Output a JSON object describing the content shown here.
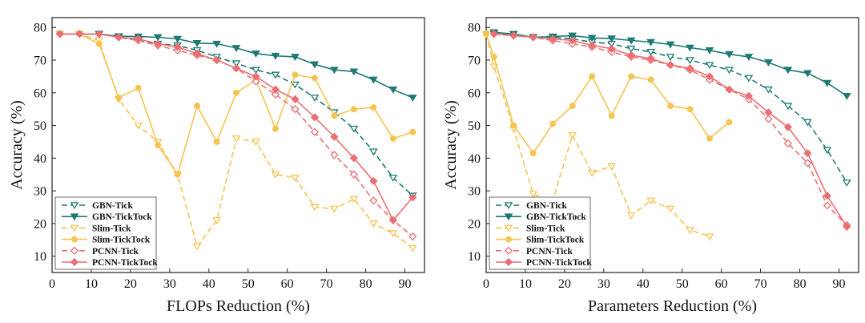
{
  "colors": {
    "gbn": "#1f7a73",
    "slim": "#f5c451",
    "pcnn": "#ea6f74"
  },
  "chart_data": [
    {
      "type": "line",
      "xlabel": "FLOPs Reduction (%)",
      "ylabel": "Accuracy (%)",
      "xlim": [
        0,
        95
      ],
      "ylim": [
        5,
        83
      ],
      "xticks": [
        0,
        10,
        20,
        30,
        40,
        50,
        60,
        70,
        80,
        90
      ],
      "yticks": [
        10,
        20,
        30,
        40,
        50,
        60,
        70,
        80
      ],
      "legend_position": "bottom-left",
      "series": [
        {
          "name": "GBN-Tick",
          "style": "dashed",
          "marker": "triangle-down-open",
          "color": "gbn",
          "x": [
            2,
            7,
            12,
            17,
            22,
            27,
            32,
            37,
            42,
            47,
            52,
            57,
            62,
            67,
            72,
            77,
            82,
            87,
            92
          ],
          "y": [
            78,
            78,
            78,
            77,
            76,
            75,
            74.5,
            73,
            71,
            69,
            67,
            65.5,
            62.5,
            58.5,
            54,
            49,
            42,
            34,
            28.5
          ]
        },
        {
          "name": "GBN-TickTock",
          "style": "solid",
          "marker": "triangle-down-filled",
          "color": "gbn",
          "x": [
            2,
            7,
            12,
            17,
            22,
            27,
            32,
            37,
            42,
            47,
            52,
            57,
            62,
            67,
            72,
            77,
            82,
            87,
            92
          ],
          "y": [
            78,
            78,
            78,
            77.3,
            77.2,
            77,
            76.5,
            75.2,
            75,
            73.7,
            72,
            71.3,
            71,
            68.7,
            67,
            66.5,
            64,
            61,
            58.5
          ]
        },
        {
          "name": "Slim-Tick",
          "style": "dashed",
          "marker": "triangle-down-open",
          "color": "slim",
          "x": [
            2,
            7,
            12,
            17,
            22,
            27,
            32,
            37,
            42,
            47,
            52,
            57,
            62,
            67,
            72,
            77,
            82,
            87,
            92
          ],
          "y": [
            78,
            78,
            76,
            58,
            50,
            45,
            35,
            13,
            21,
            46,
            45,
            35,
            34,
            25,
            24.5,
            27.5,
            20,
            17,
            12.5
          ]
        },
        {
          "name": "Slim-TickTock",
          "style": "solid",
          "marker": "circle-filled",
          "color": "slim",
          "x": [
            2,
            7,
            12,
            17,
            22,
            27,
            32,
            37,
            42,
            47,
            52,
            57,
            62,
            67,
            72,
            77,
            82,
            87,
            92
          ],
          "y": [
            78,
            78,
            75,
            58.5,
            61.5,
            44,
            35,
            56,
            45,
            60,
            64,
            49,
            65.5,
            64.5,
            53,
            55,
            55.5,
            46,
            48
          ]
        },
        {
          "name": "PCNN-Tick",
          "style": "dashed",
          "marker": "diamond-open",
          "color": "pcnn",
          "x": [
            2,
            7,
            12,
            17,
            22,
            27,
            32,
            37,
            42,
            47,
            52,
            57,
            62,
            67,
            72,
            77,
            82,
            87,
            92
          ],
          "y": [
            78,
            78,
            78,
            77,
            76,
            74.5,
            73,
            71.5,
            70,
            67.5,
            63.5,
            59.5,
            55,
            48,
            41,
            35,
            27,
            21,
            16
          ]
        },
        {
          "name": "PCNN-TickTock",
          "style": "solid",
          "marker": "diamond-filled",
          "color": "pcnn",
          "x": [
            2,
            7,
            12,
            17,
            22,
            27,
            32,
            37,
            42,
            47,
            52,
            57,
            62,
            67,
            72,
            77,
            82,
            87,
            92
          ],
          "y": [
            78,
            78,
            78,
            77,
            76.5,
            75,
            74,
            72,
            70,
            67.5,
            65,
            61,
            58,
            52.5,
            46.5,
            40,
            33,
            21,
            28
          ]
        }
      ]
    },
    {
      "type": "line",
      "xlabel": "Parameters Reduction (%)",
      "ylabel": "Accuracy (%)",
      "xlim": [
        0,
        95
      ],
      "ylim": [
        5,
        83
      ],
      "xticks": [
        0,
        10,
        20,
        30,
        40,
        50,
        60,
        70,
        80,
        90
      ],
      "yticks": [
        10,
        20,
        30,
        40,
        50,
        60,
        70,
        80
      ],
      "legend_position": "bottom-left",
      "series": [
        {
          "name": "GBN-Tick",
          "style": "dashed",
          "marker": "triangle-down-open",
          "color": "gbn",
          "x": [
            2,
            7,
            12,
            17,
            22,
            27,
            32,
            37,
            42,
            47,
            52,
            57,
            62,
            67,
            72,
            77,
            82,
            87,
            92
          ],
          "y": [
            78,
            78,
            77,
            77,
            76.5,
            75.5,
            75,
            73.5,
            72.5,
            71,
            70,
            68.5,
            67,
            64.5,
            61,
            56,
            51,
            42.5,
            32.5
          ]
        },
        {
          "name": "GBN-TickTock",
          "style": "solid",
          "marker": "triangle-down-filled",
          "color": "gbn",
          "x": [
            2,
            7,
            12,
            17,
            22,
            27,
            32,
            37,
            42,
            47,
            52,
            57,
            62,
            67,
            72,
            77,
            82,
            87,
            92
          ],
          "y": [
            78.5,
            78,
            77,
            77.2,
            77.5,
            76.8,
            76.6,
            76,
            75.5,
            74.8,
            73.8,
            73,
            71.8,
            71,
            69.3,
            67,
            66,
            63,
            59
          ]
        },
        {
          "name": "Slim-Tick",
          "style": "dashed",
          "marker": "triangle-down-open",
          "color": "slim",
          "x": [
            0,
            2,
            7,
            12,
            17,
            22,
            27,
            32,
            37,
            42,
            47,
            52,
            57
          ],
          "y": [
            78,
            68,
            49,
            29,
            27,
            47,
            35.5,
            37.5,
            22.5,
            27,
            24.5,
            18,
            16
          ]
        },
        {
          "name": "Slim-TickTock",
          "style": "solid",
          "marker": "circle-filled",
          "color": "slim",
          "x": [
            0,
            2,
            7,
            12,
            17,
            22,
            27,
            32,
            37,
            42,
            47,
            52,
            57,
            62
          ],
          "y": [
            78,
            71,
            50,
            41.5,
            50.5,
            56,
            65,
            53,
            65,
            64,
            56,
            55,
            46,
            51
          ]
        },
        {
          "name": "PCNN-Tick",
          "style": "dashed",
          "marker": "diamond-open",
          "color": "pcnn",
          "x": [
            2,
            7,
            12,
            17,
            22,
            27,
            32,
            37,
            42,
            47,
            52,
            57,
            62,
            67,
            72,
            77,
            82,
            87,
            92
          ],
          "y": [
            78,
            77.5,
            77,
            76,
            75,
            74,
            72.5,
            71,
            70,
            68.5,
            67,
            64,
            61,
            58,
            52,
            44.5,
            38.5,
            25.5,
            19.5
          ]
        },
        {
          "name": "PCNN-TickTock",
          "style": "solid",
          "marker": "diamond-filled",
          "color": "pcnn",
          "x": [
            2,
            7,
            12,
            17,
            22,
            27,
            32,
            37,
            42,
            47,
            52,
            57,
            62,
            67,
            72,
            77,
            82,
            87,
            92
          ],
          "y": [
            78,
            77.5,
            77,
            76.5,
            76,
            74.5,
            73.5,
            71.5,
            70.5,
            68.5,
            67.5,
            65,
            61,
            59,
            54,
            49.5,
            41.5,
            28.5,
            19
          ]
        }
      ]
    }
  ]
}
